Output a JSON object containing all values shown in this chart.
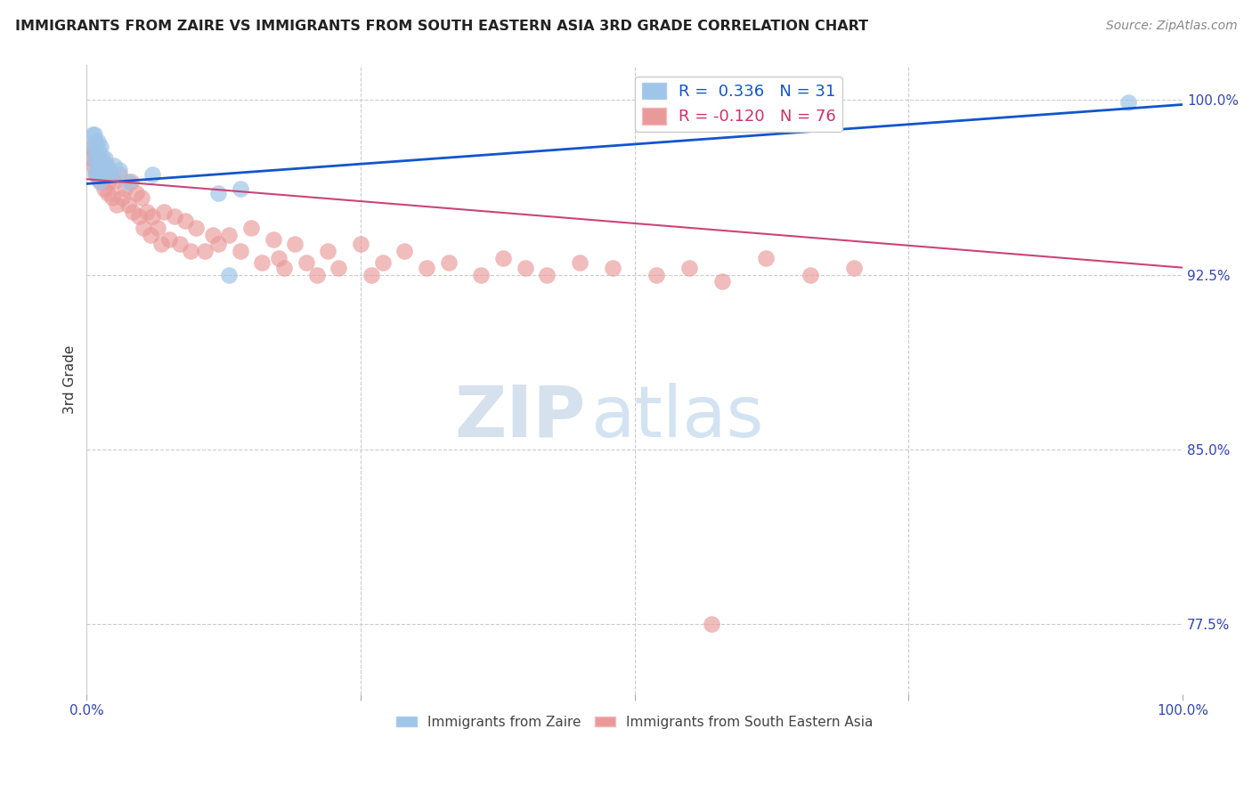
{
  "title": "IMMIGRANTS FROM ZAIRE VS IMMIGRANTS FROM SOUTH EASTERN ASIA 3RD GRADE CORRELATION CHART",
  "source": "Source: ZipAtlas.com",
  "ylabel": "3rd Grade",
  "ymin": 0.745,
  "ymax": 1.015,
  "xmin": 0.0,
  "xmax": 1.0,
  "blue_color": "#9fc5e8",
  "pink_color": "#ea9999",
  "blue_line_color": "#1155cc",
  "pink_line_color": "#cc4477",
  "legend_R_blue": "0.336",
  "legend_N_blue": "31",
  "legend_R_pink": "-0.120",
  "legend_N_pink": "76",
  "watermark_ZIP": "ZIP",
  "watermark_atlas": "atlas",
  "blue_x": [
    0.005,
    0.006,
    0.007,
    0.007,
    0.008,
    0.008,
    0.009,
    0.009,
    0.01,
    0.01,
    0.01,
    0.011,
    0.012,
    0.012,
    0.013,
    0.013,
    0.014,
    0.015,
    0.016,
    0.017,
    0.018,
    0.02,
    0.022,
    0.025,
    0.03,
    0.038,
    0.06,
    0.12,
    0.14,
    0.13,
    0.95
  ],
  "blue_y": [
    0.985,
    0.98,
    0.985,
    0.975,
    0.982,
    0.97,
    0.978,
    0.968,
    0.982,
    0.975,
    0.968,
    0.978,
    0.974,
    0.965,
    0.98,
    0.97,
    0.975,
    0.972,
    0.968,
    0.975,
    0.968,
    0.97,
    0.968,
    0.972,
    0.97,
    0.965,
    0.968,
    0.96,
    0.962,
    0.925,
    0.999
  ],
  "pink_x": [
    0.004,
    0.005,
    0.006,
    0.007,
    0.008,
    0.009,
    0.01,
    0.011,
    0.012,
    0.013,
    0.014,
    0.015,
    0.016,
    0.018,
    0.019,
    0.02,
    0.022,
    0.023,
    0.025,
    0.027,
    0.03,
    0.032,
    0.035,
    0.038,
    0.04,
    0.042,
    0.045,
    0.048,
    0.05,
    0.052,
    0.055,
    0.058,
    0.06,
    0.065,
    0.068,
    0.07,
    0.075,
    0.08,
    0.085,
    0.09,
    0.095,
    0.1,
    0.108,
    0.115,
    0.12,
    0.13,
    0.14,
    0.15,
    0.16,
    0.17,
    0.175,
    0.18,
    0.19,
    0.2,
    0.21,
    0.22,
    0.23,
    0.25,
    0.26,
    0.27,
    0.29,
    0.31,
    0.33,
    0.36,
    0.38,
    0.4,
    0.42,
    0.45,
    0.48,
    0.52,
    0.55,
    0.58,
    0.62,
    0.66,
    0.7,
    0.57
  ],
  "pink_y": [
    0.975,
    0.98,
    0.972,
    0.978,
    0.968,
    0.974,
    0.972,
    0.968,
    0.975,
    0.965,
    0.97,
    0.968,
    0.962,
    0.972,
    0.96,
    0.965,
    0.968,
    0.958,
    0.965,
    0.955,
    0.968,
    0.958,
    0.962,
    0.955,
    0.965,
    0.952,
    0.96,
    0.95,
    0.958,
    0.945,
    0.952,
    0.942,
    0.95,
    0.945,
    0.938,
    0.952,
    0.94,
    0.95,
    0.938,
    0.948,
    0.935,
    0.945,
    0.935,
    0.942,
    0.938,
    0.942,
    0.935,
    0.945,
    0.93,
    0.94,
    0.932,
    0.928,
    0.938,
    0.93,
    0.925,
    0.935,
    0.928,
    0.938,
    0.925,
    0.93,
    0.935,
    0.928,
    0.93,
    0.925,
    0.932,
    0.928,
    0.925,
    0.93,
    0.928,
    0.925,
    0.928,
    0.922,
    0.932,
    0.925,
    0.928,
    0.775
  ],
  "blue_trend": [
    0.0,
    1.0
  ],
  "blue_trend_y": [
    0.964,
    0.998
  ],
  "pink_trend": [
    0.0,
    1.0
  ],
  "pink_trend_y": [
    0.966,
    0.928
  ]
}
